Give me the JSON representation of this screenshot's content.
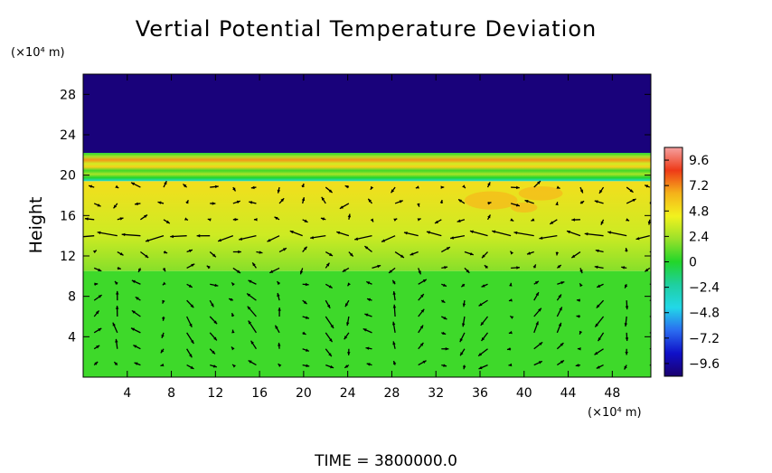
{
  "chart_data": {
    "type": "heatmap",
    "title": "Vertial Potential Temperature Deviation",
    "ylabel": "Height",
    "y_unit": "(×10⁴ m)",
    "x_unit": "(×10⁴ m)",
    "xlim": [
      0,
      51.5
    ],
    "ylim": [
      0,
      30
    ],
    "xticks": [
      4,
      8,
      12,
      16,
      20,
      24,
      28,
      32,
      36,
      40,
      44,
      48
    ],
    "yticks": [
      4,
      8,
      12,
      16,
      20,
      24,
      28
    ],
    "colorbar": {
      "ticks": [
        9.6,
        7.2,
        4.8,
        2.4,
        0,
        -2.4,
        -4.8,
        -7.2,
        -9.6
      ],
      "tick_labels": [
        "9.6",
        "7.2",
        "4.8",
        "2.4",
        "0",
        "−2.4",
        "−4.8",
        "−7.2",
        "−9.6"
      ],
      "range": [
        -10.8,
        10.8
      ],
      "colors": [
        "#1a006e",
        "#1010c8",
        "#2a6cf0",
        "#22d8e8",
        "#1fcfa0",
        "#22d62a",
        "#9be12a",
        "#f2f21e",
        "#f5b21a",
        "#ee3a18",
        "#f5a0a0"
      ]
    },
    "layers": [
      {
        "name": "upper",
        "y_range": [
          22.2,
          30
        ],
        "value": -10.5
      },
      {
        "name": "band",
        "y_range": [
          19.4,
          22.2
        ],
        "values_top_to_bottom": [
          0,
          2.5,
          7,
          3.5,
          5.5,
          0.5,
          2.5,
          0,
          -4
        ]
      },
      {
        "name": "mid",
        "y_range": [
          10.5,
          19.4
        ],
        "value_range": [
          1.8,
          5.0
        ]
      },
      {
        "name": "lower",
        "y_range": [
          0,
          10.5
        ],
        "value": 0.5
      }
    ],
    "vectors_present": true,
    "time_label": "TIME  =  3800000.0"
  },
  "colors": {
    "background": "#ffffff",
    "upper_layer": "#9000a8",
    "lower_layer": "#1fd41f",
    "mid_layer": "#c8e62a"
  }
}
